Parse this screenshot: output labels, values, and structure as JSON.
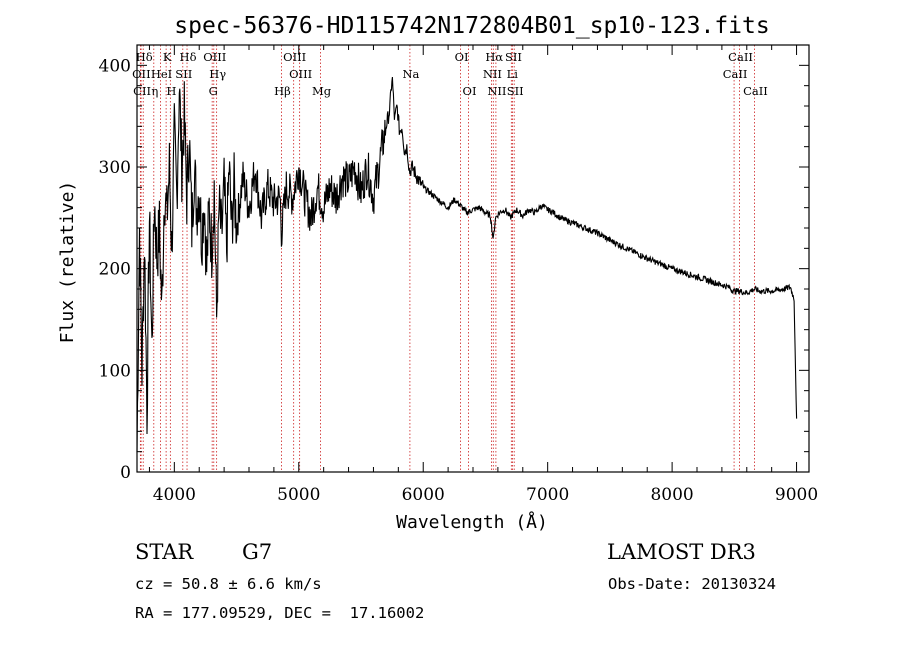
{
  "chart_data": {
    "type": "line",
    "title": "spec-56376-HD115742N172804B01_sp10-123.fits",
    "xlabel": "Wavelength (Å)",
    "ylabel": "Flux (relative)",
    "xlim": [
      3700,
      9100
    ],
    "ylim": [
      0,
      420
    ],
    "x_ticks": [
      4000,
      5000,
      6000,
      7000,
      8000,
      9000
    ],
    "y_ticks": [
      0,
      100,
      200,
      300,
      400
    ],
    "grid": false,
    "series": [
      {
        "name": "spectrum",
        "x": [
          3700,
          3720,
          3740,
          3760,
          3780,
          3800,
          3820,
          3840,
          3860,
          3880,
          3900,
          3920,
          3940,
          3960,
          3980,
          4000,
          4020,
          4040,
          4060,
          4080,
          4100,
          4120,
          4140,
          4160,
          4180,
          4200,
          4220,
          4240,
          4260,
          4280,
          4300,
          4320,
          4340,
          4360,
          4380,
          4400,
          4420,
          4440,
          4460,
          4480,
          4500,
          4550,
          4600,
          4650,
          4700,
          4750,
          4800,
          4850,
          4861,
          4900,
          4950,
          5000,
          5050,
          5100,
          5150,
          5200,
          5250,
          5300,
          5350,
          5400,
          5450,
          5500,
          5550,
          5600,
          5650,
          5700,
          5730,
          5750,
          5770,
          5790,
          5810,
          5830,
          5850,
          5870,
          5890,
          5910,
          5950,
          6000,
          6050,
          6100,
          6150,
          6200,
          6250,
          6300,
          6350,
          6400,
          6450,
          6500,
          6540,
          6563,
          6580,
          6620,
          6660,
          6700,
          6750,
          6800,
          6850,
          6900,
          6950,
          7000,
          7050,
          7100,
          7200,
          7300,
          7400,
          7500,
          7600,
          7700,
          7800,
          7900,
          8000,
          8100,
          8200,
          8300,
          8400,
          8450,
          8498,
          8542,
          8600,
          8662,
          8700,
          8800,
          8900,
          8950,
          8980,
          9000
        ],
        "y": [
          20,
          240,
          100,
          230,
          60,
          250,
          120,
          270,
          210,
          240,
          160,
          280,
          250,
          300,
          220,
          330,
          270,
          380,
          300,
          350,
          270,
          330,
          240,
          300,
          260,
          280,
          230,
          270,
          200,
          260,
          220,
          280,
          150,
          260,
          230,
          280,
          220,
          300,
          240,
          280,
          240,
          290,
          260,
          300,
          250,
          280,
          265,
          270,
          235,
          280,
          270,
          300,
          270,
          250,
          280,
          260,
          280,
          270,
          290,
          285,
          300,
          275,
          300,
          270,
          305,
          340,
          355,
          390,
          345,
          360,
          335,
          340,
          315,
          320,
          295,
          300,
          290,
          280,
          275,
          270,
          265,
          260,
          268,
          262,
          255,
          258,
          260,
          255,
          252,
          228,
          250,
          256,
          258,
          250,
          258,
          252,
          258,
          255,
          262,
          258,
          255,
          250,
          245,
          240,
          235,
          228,
          222,
          216,
          210,
          205,
          200,
          196,
          192,
          188,
          184,
          182,
          178,
          178,
          176,
          180,
          178,
          178,
          180,
          182,
          170,
          50
        ]
      }
    ],
    "spectral_lines": [
      {
        "label": "Hδ",
        "wavelength": 3750,
        "row": 0
      },
      {
        "label": "OII",
        "wavelength": 3727,
        "row": 1
      },
      {
        "label": "CII",
        "wavelength": 3733,
        "row": 2
      },
      {
        "label": "K",
        "wavelength": 3934,
        "row": 0
      },
      {
        "label": "HeI",
        "wavelength": 3889,
        "row": 1
      },
      {
        "label": "η",
        "wavelength": 3835,
        "row": 2
      },
      {
        "label": "H",
        "wavelength": 3968,
        "row": 2
      },
      {
        "label": "SII",
        "wavelength": 4068,
        "row": 1
      },
      {
        "label": "Hδ",
        "wavelength": 4102,
        "row": 0
      },
      {
        "label": "OIII",
        "wavelength": 4317,
        "row": 0
      },
      {
        "label": "Hγ",
        "wavelength": 4340,
        "row": 1
      },
      {
        "label": "G",
        "wavelength": 4304,
        "row": 2
      },
      {
        "label": "Hβ",
        "wavelength": 4861,
        "row": 2
      },
      {
        "label": "OIII",
        "wavelength": 4959,
        "row": 0
      },
      {
        "label": "OIII",
        "wavelength": 5007,
        "row": 1
      },
      {
        "label": "Mg",
        "wavelength": 5175,
        "row": 2
      },
      {
        "label": "Na",
        "wavelength": 5893,
        "row": 1
      },
      {
        "label": "OI",
        "wavelength": 6300,
        "row": 0
      },
      {
        "label": "OI",
        "wavelength": 6364,
        "row": 2
      },
      {
        "label": "Hα",
        "wavelength": 6563,
        "row": 0
      },
      {
        "label": "NII",
        "wavelength": 6548,
        "row": 1
      },
      {
        "label": "NII",
        "wavelength": 6584,
        "row": 2
      },
      {
        "label": "SII",
        "wavelength": 6717,
        "row": 0
      },
      {
        "label": "Li",
        "wavelength": 6708,
        "row": 1
      },
      {
        "label": "SII",
        "wavelength": 6731,
        "row": 2
      },
      {
        "label": "CaII",
        "wavelength": 8542,
        "row": 0
      },
      {
        "label": "CaII",
        "wavelength": 8498,
        "row": 1
      },
      {
        "label": "CaII",
        "wavelength": 8662,
        "row": 2
      }
    ]
  },
  "info": {
    "class": "STAR",
    "subclass": "G7",
    "survey": "LAMOST DR3",
    "cz": "cz = 50.8 ± 6.6 km/s",
    "obs_date": "Obs-Date: 20130324",
    "radec": "RA = 177.09529, DEC =  17.16002"
  },
  "colors": {
    "spectrum": "#000000",
    "line_markers": "#cc2222",
    "axes": "#000000"
  }
}
